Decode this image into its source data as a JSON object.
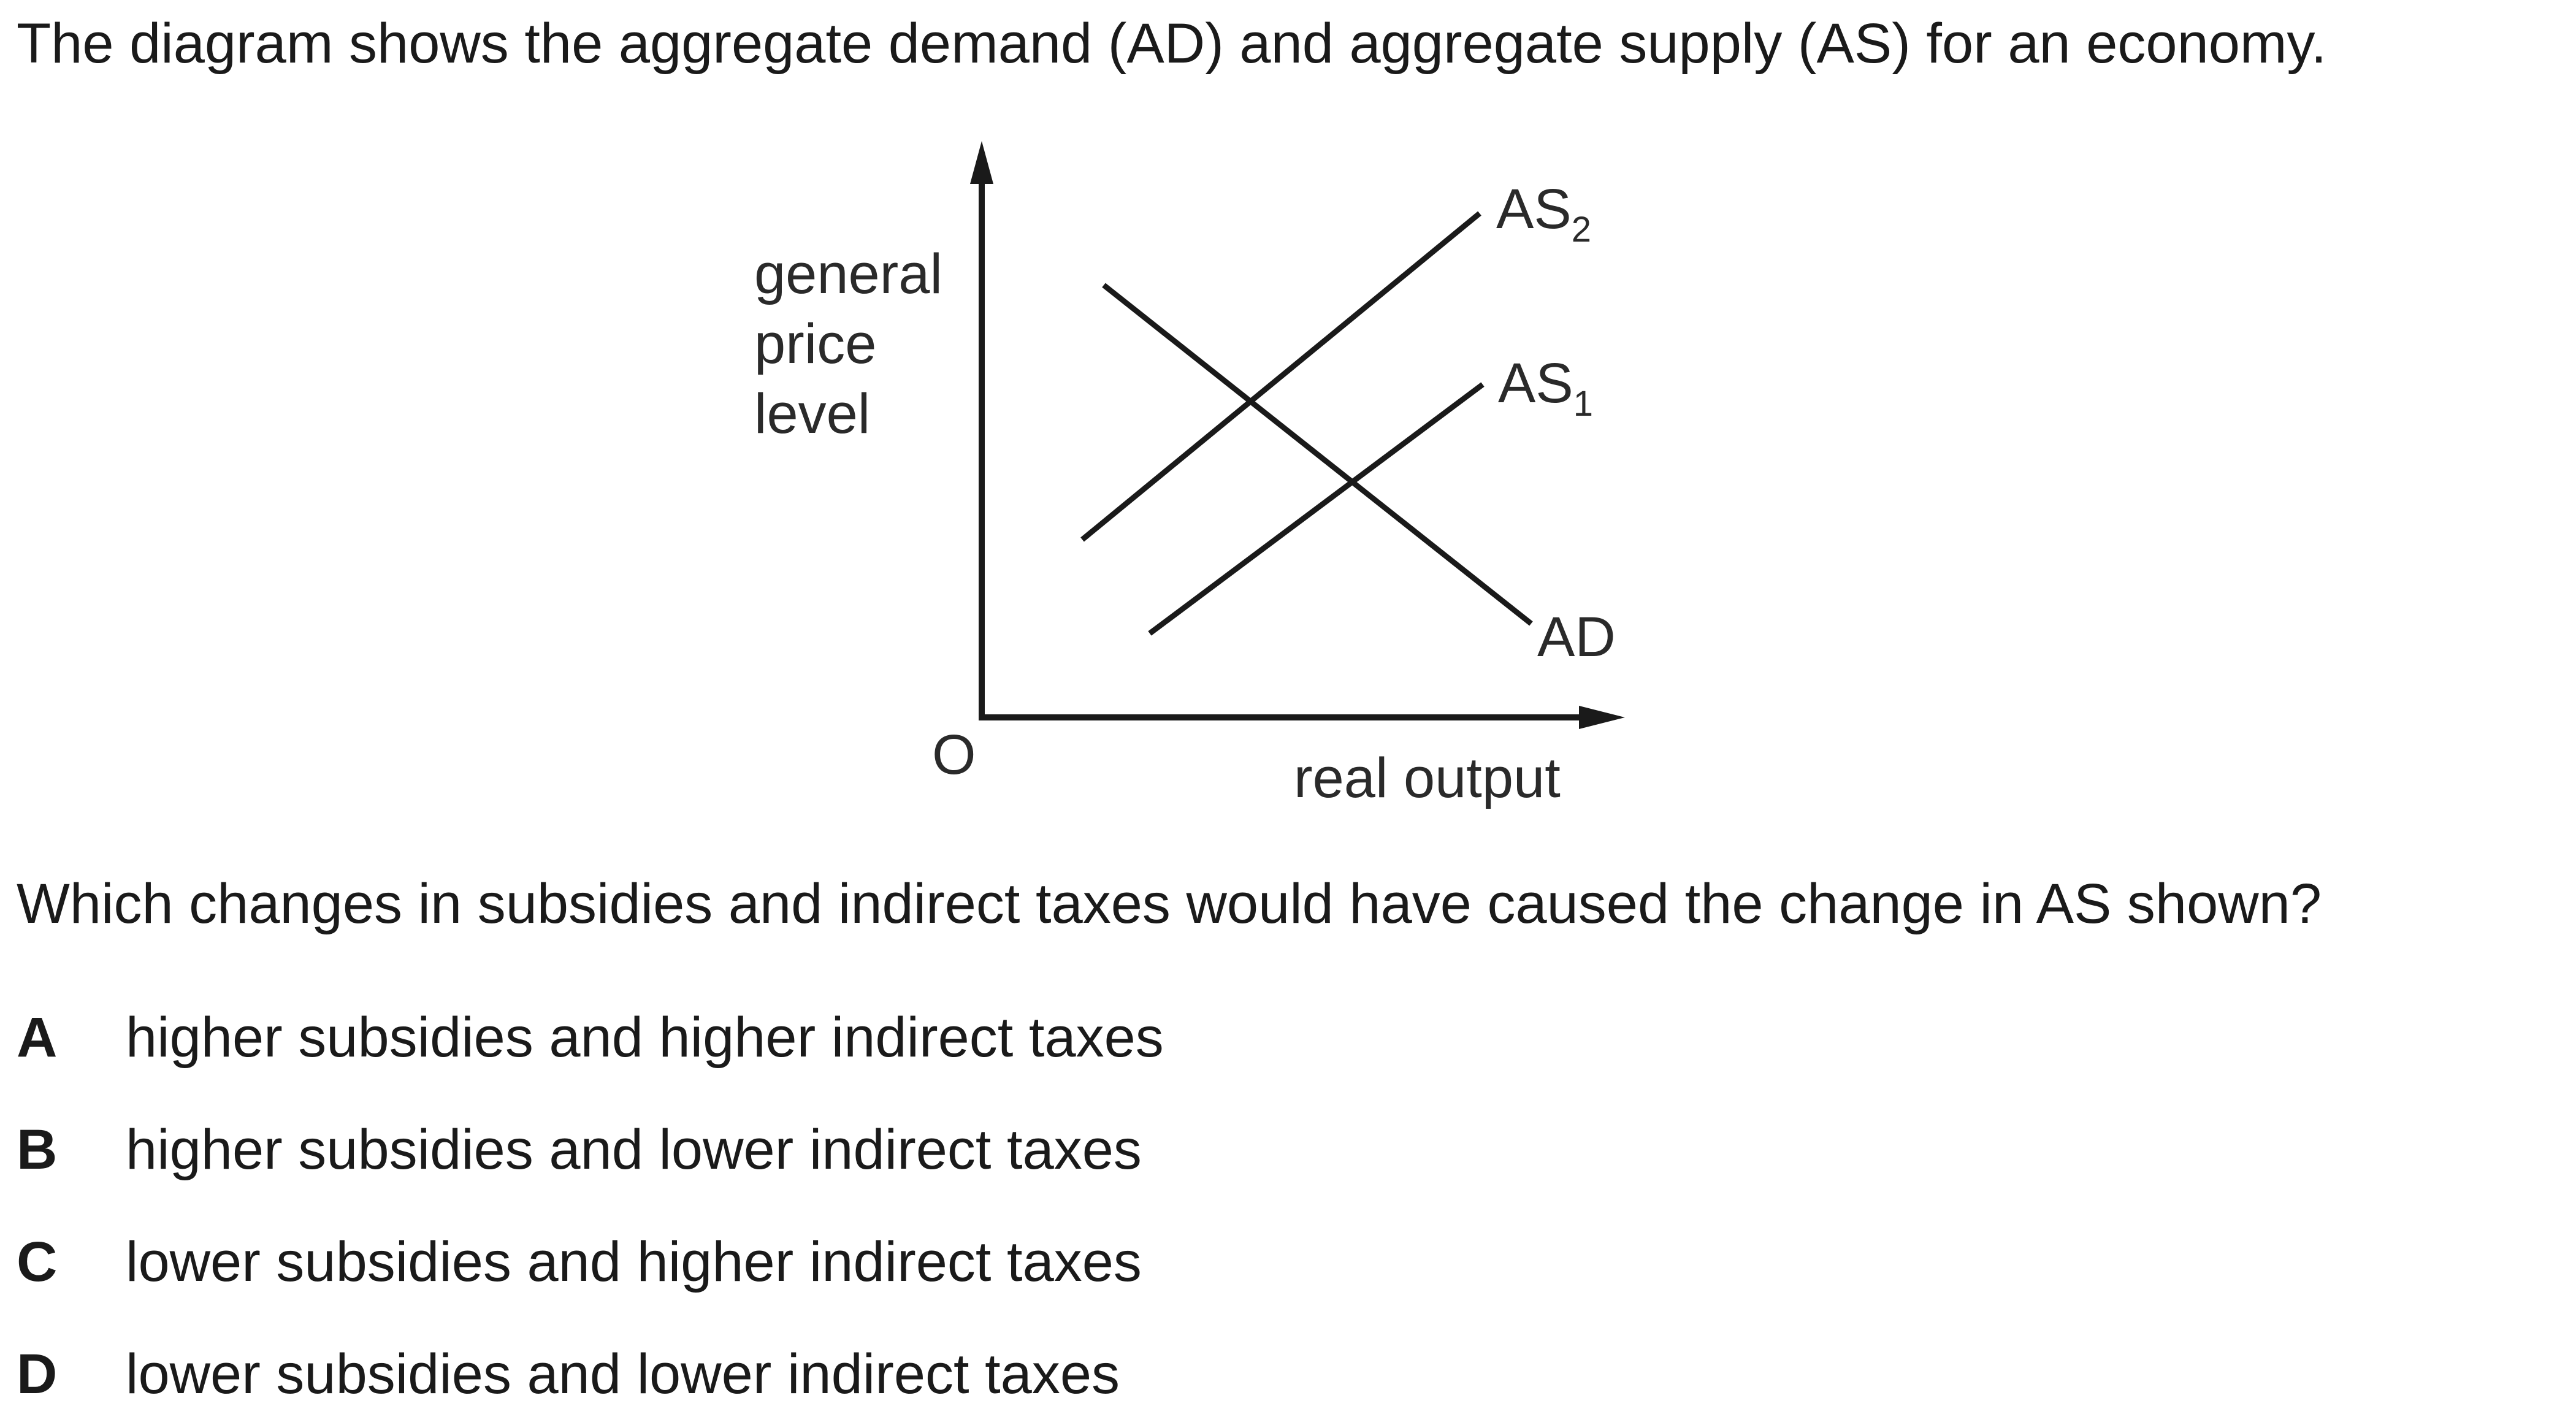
{
  "intro_text": "The diagram shows the aggregate demand (AD) and aggregate supply (AS) for an economy.",
  "diagram": {
    "y_axis_label": [
      "general",
      "price",
      "level"
    ],
    "origin_label": "O",
    "x_axis_label": "real output",
    "curves": {
      "as2": {
        "base": "AS",
        "sub": "2"
      },
      "as1": {
        "base": "AS",
        "sub": "1"
      },
      "ad": {
        "base": "AD"
      }
    }
  },
  "question_text": "Which changes in subsidies and indirect taxes would have caused the change in AS shown?",
  "options": [
    {
      "letter": "A",
      "text": "higher subsidies and higher indirect taxes"
    },
    {
      "letter": "B",
      "text": "higher subsidies and lower indirect taxes"
    },
    {
      "letter": "C",
      "text": "lower subsidies and higher indirect taxes"
    },
    {
      "letter": "D",
      "text": "lower subsidies and lower indirect taxes"
    }
  ],
  "colors": {
    "ink": "#1a1a1a",
    "background": "#ffffff"
  }
}
